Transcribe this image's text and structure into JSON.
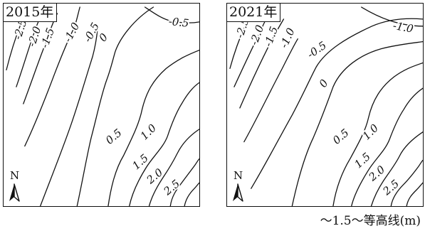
{
  "maps": [
    {
      "id": "2015",
      "year_label": "2015年",
      "north_label": "N",
      "contours": [
        {
          "value": -2.5,
          "label": "-2.5"
        },
        {
          "value": -2.0,
          "label": "-2.0"
        },
        {
          "value": -1.5,
          "label": "-1.5"
        },
        {
          "value": -1.0,
          "label": "-1.0"
        },
        {
          "value": -0.5,
          "label": "-0.5"
        },
        {
          "value": 0,
          "label": "0"
        },
        {
          "value": -0.5,
          "label": "-0.5"
        },
        {
          "value": 0.5,
          "label": "0.5"
        },
        {
          "value": 1.0,
          "label": "1.0"
        },
        {
          "value": 1.5,
          "label": "1.5"
        },
        {
          "value": 2.0,
          "label": "2.0"
        },
        {
          "value": 2.5,
          "label": "2.5"
        }
      ]
    },
    {
      "id": "2021",
      "year_label": "2021年",
      "north_label": "N",
      "contours": [
        {
          "value": -2.5,
          "label": "-2.5"
        },
        {
          "value": -2.0,
          "label": "-2.0"
        },
        {
          "value": -1.5,
          "label": "-1.5"
        },
        {
          "value": -1.0,
          "label": "-1.0"
        },
        {
          "value": -1.0,
          "label": "-1.0"
        },
        {
          "value": -0.5,
          "label": "-0.5"
        },
        {
          "value": 0,
          "label": "0"
        },
        {
          "value": 0.5,
          "label": "0.5"
        },
        {
          "value": 1.0,
          "label": "1.0"
        },
        {
          "value": 1.5,
          "label": "1.5"
        },
        {
          "value": 2.0,
          "label": "2.0"
        },
        {
          "value": 2.5,
          "label": "2.5"
        }
      ]
    }
  ],
  "legend": {
    "text": "～1.5～等高线(m)"
  }
}
